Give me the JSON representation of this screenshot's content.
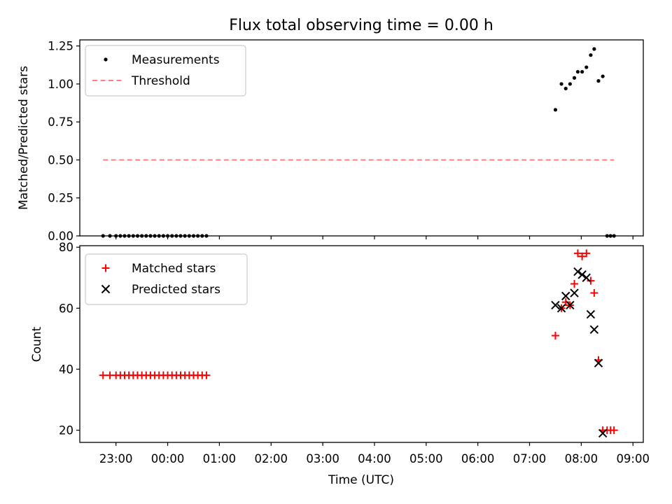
{
  "chart_data": [
    {
      "type": "scatter",
      "title": "Flux total observing time = 0.00 h",
      "xlabel": "",
      "ylabel": "Matched/Predicted stars",
      "xlim": [
        "2021-01-01 22:18",
        "2021-01-02 09:12"
      ],
      "ylim": [
        0,
        1.29
      ],
      "yticks": [
        "0.00",
        "0.25",
        "0.50",
        "0.75",
        "1.00",
        "1.25"
      ],
      "grid": false,
      "legend": "top-left",
      "series": [
        {
          "name": "Measurements",
          "marker": "dot",
          "color": "#000000",
          "points": [
            [
              "22:45",
              0.0
            ],
            [
              "22:53",
              0.0
            ],
            [
              "23:00",
              0.0
            ],
            [
              "23:05",
              0.0
            ],
            [
              "23:10",
              0.0
            ],
            [
              "23:15",
              0.0
            ],
            [
              "23:20",
              0.0
            ],
            [
              "23:25",
              0.0
            ],
            [
              "23:30",
              0.0
            ],
            [
              "23:35",
              0.0
            ],
            [
              "23:40",
              0.0
            ],
            [
              "23:45",
              0.0
            ],
            [
              "23:50",
              0.0
            ],
            [
              "23:55",
              0.0
            ],
            [
              "00:00",
              0.0
            ],
            [
              "00:05",
              0.0
            ],
            [
              "00:10",
              0.0
            ],
            [
              "00:15",
              0.0
            ],
            [
              "00:20",
              0.0
            ],
            [
              "00:25",
              0.0
            ],
            [
              "00:30",
              0.0
            ],
            [
              "00:35",
              0.0
            ],
            [
              "00:40",
              0.0
            ],
            [
              "00:45",
              0.0
            ],
            [
              "07:30",
              0.83
            ],
            [
              "07:37",
              1.0
            ],
            [
              "07:42",
              0.97
            ],
            [
              "07:47",
              1.0
            ],
            [
              "07:52",
              1.04
            ],
            [
              "07:56",
              1.08
            ],
            [
              "08:01",
              1.08
            ],
            [
              "08:06",
              1.11
            ],
            [
              "08:11",
              1.19
            ],
            [
              "08:15",
              1.23
            ],
            [
              "08:20",
              1.02
            ],
            [
              "08:25",
              1.05
            ],
            [
              "08:30",
              0.0
            ],
            [
              "08:34",
              0.0
            ],
            [
              "08:38",
              0.0
            ]
          ]
        },
        {
          "name": "Threshold",
          "marker": "dashed-line",
          "color": "#ff7f7f",
          "points": [
            [
              "22:45",
              0.5
            ],
            [
              "08:38",
              0.5
            ]
          ]
        }
      ]
    },
    {
      "type": "scatter",
      "title": "",
      "xlabel": "Time (UTC)",
      "ylabel": "Count",
      "xlim": [
        "2021-01-01 22:18",
        "2021-01-02 09:12"
      ],
      "ylim": [
        16,
        80.5
      ],
      "yticks": [
        "20",
        "40",
        "60",
        "80"
      ],
      "xticks": [
        "23:00",
        "00:00",
        "01:00",
        "02:00",
        "03:00",
        "04:00",
        "05:00",
        "06:00",
        "07:00",
        "08:00",
        "09:00"
      ],
      "grid": false,
      "legend": "top-left",
      "series": [
        {
          "name": "Matched stars",
          "marker": "plus",
          "color": "#ff0000",
          "points": [
            [
              "22:45",
              38
            ],
            [
              "22:53",
              38
            ],
            [
              "23:00",
              38
            ],
            [
              "23:05",
              38
            ],
            [
              "23:10",
              38
            ],
            [
              "23:15",
              38
            ],
            [
              "23:20",
              38
            ],
            [
              "23:25",
              38
            ],
            [
              "23:30",
              38
            ],
            [
              "23:35",
              38
            ],
            [
              "23:40",
              38
            ],
            [
              "23:45",
              38
            ],
            [
              "23:50",
              38
            ],
            [
              "23:55",
              38
            ],
            [
              "00:00",
              38
            ],
            [
              "00:05",
              38
            ],
            [
              "00:10",
              38
            ],
            [
              "00:15",
              38
            ],
            [
              "00:20",
              38
            ],
            [
              "00:25",
              38
            ],
            [
              "00:30",
              38
            ],
            [
              "00:35",
              38
            ],
            [
              "00:40",
              38
            ],
            [
              "00:45",
              38
            ],
            [
              "07:30",
              51
            ],
            [
              "07:37",
              60
            ],
            [
              "07:42",
              62
            ],
            [
              "07:47",
              61
            ],
            [
              "07:52",
              68
            ],
            [
              "07:56",
              78
            ],
            [
              "08:01",
              77
            ],
            [
              "08:06",
              78
            ],
            [
              "08:11",
              69
            ],
            [
              "08:15",
              65
            ],
            [
              "08:20",
              43
            ],
            [
              "08:25",
              20
            ],
            [
              "08:30",
              20
            ],
            [
              "08:34",
              20
            ],
            [
              "08:38",
              20
            ]
          ]
        },
        {
          "name": "Predicted stars",
          "marker": "x",
          "color": "#000000",
          "points": [
            [
              "07:30",
              61
            ],
            [
              "07:37",
              60
            ],
            [
              "07:42",
              64
            ],
            [
              "07:47",
              61
            ],
            [
              "07:52",
              65
            ],
            [
              "07:56",
              72
            ],
            [
              "08:01",
              71
            ],
            [
              "08:06",
              70
            ],
            [
              "08:11",
              58
            ],
            [
              "08:15",
              53
            ],
            [
              "08:20",
              42
            ],
            [
              "08:25",
              19
            ]
          ]
        }
      ]
    }
  ]
}
